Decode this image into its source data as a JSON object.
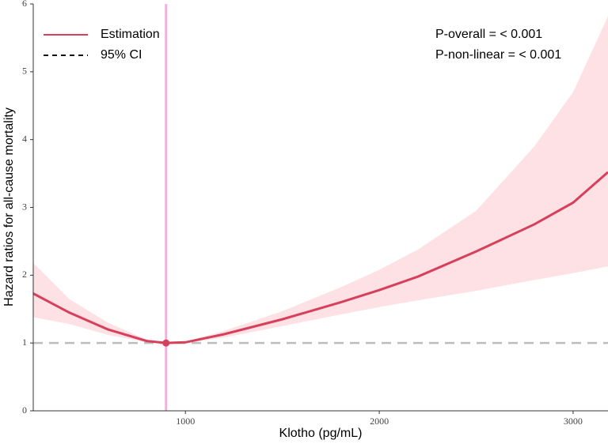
{
  "chart_data": {
    "type": "line",
    "x_label": "Klotho (pg/mL)",
    "y_label": "Hazard ratios for all-cause mortality",
    "annotations": [
      "P-overall = < 0.001",
      "P-non-linear = < 0.001"
    ],
    "x": [
      215,
      400,
      600,
      800,
      900,
      1000,
      1200,
      1500,
      1800,
      2000,
      2200,
      2500,
      2800,
      3000,
      3180
    ],
    "series": [
      {
        "name": "Estimation",
        "color": "#d6405a",
        "values": [
          1.73,
          1.45,
          1.2,
          1.03,
          1.0,
          1.01,
          1.13,
          1.35,
          1.6,
          1.78,
          1.98,
          2.35,
          2.75,
          3.07,
          3.52
        ]
      },
      {
        "name": "95% CI",
        "color": "#fde1e5",
        "lower": [
          1.38,
          1.28,
          1.12,
          1.01,
          1.0,
          1.0,
          1.08,
          1.25,
          1.42,
          1.53,
          1.63,
          1.77,
          1.93,
          2.03,
          2.13
        ],
        "upper": [
          2.18,
          1.65,
          1.3,
          1.05,
          1.0,
          1.02,
          1.18,
          1.47,
          1.82,
          2.08,
          2.38,
          2.95,
          3.9,
          4.7,
          5.82
        ]
      }
    ],
    "highlight_index": 4,
    "reference_y": 1,
    "reference_x": 900,
    "reference_x_color": "#f0b3d9",
    "reference_y_color": "#bdbdbd",
    "xlim": [
      215,
      3180
    ],
    "ylim": [
      0,
      6
    ],
    "xticks": [
      1000,
      2000,
      3000
    ],
    "yticks": [
      0,
      1,
      2,
      3,
      4,
      5,
      6
    ],
    "legend": "top-left"
  }
}
